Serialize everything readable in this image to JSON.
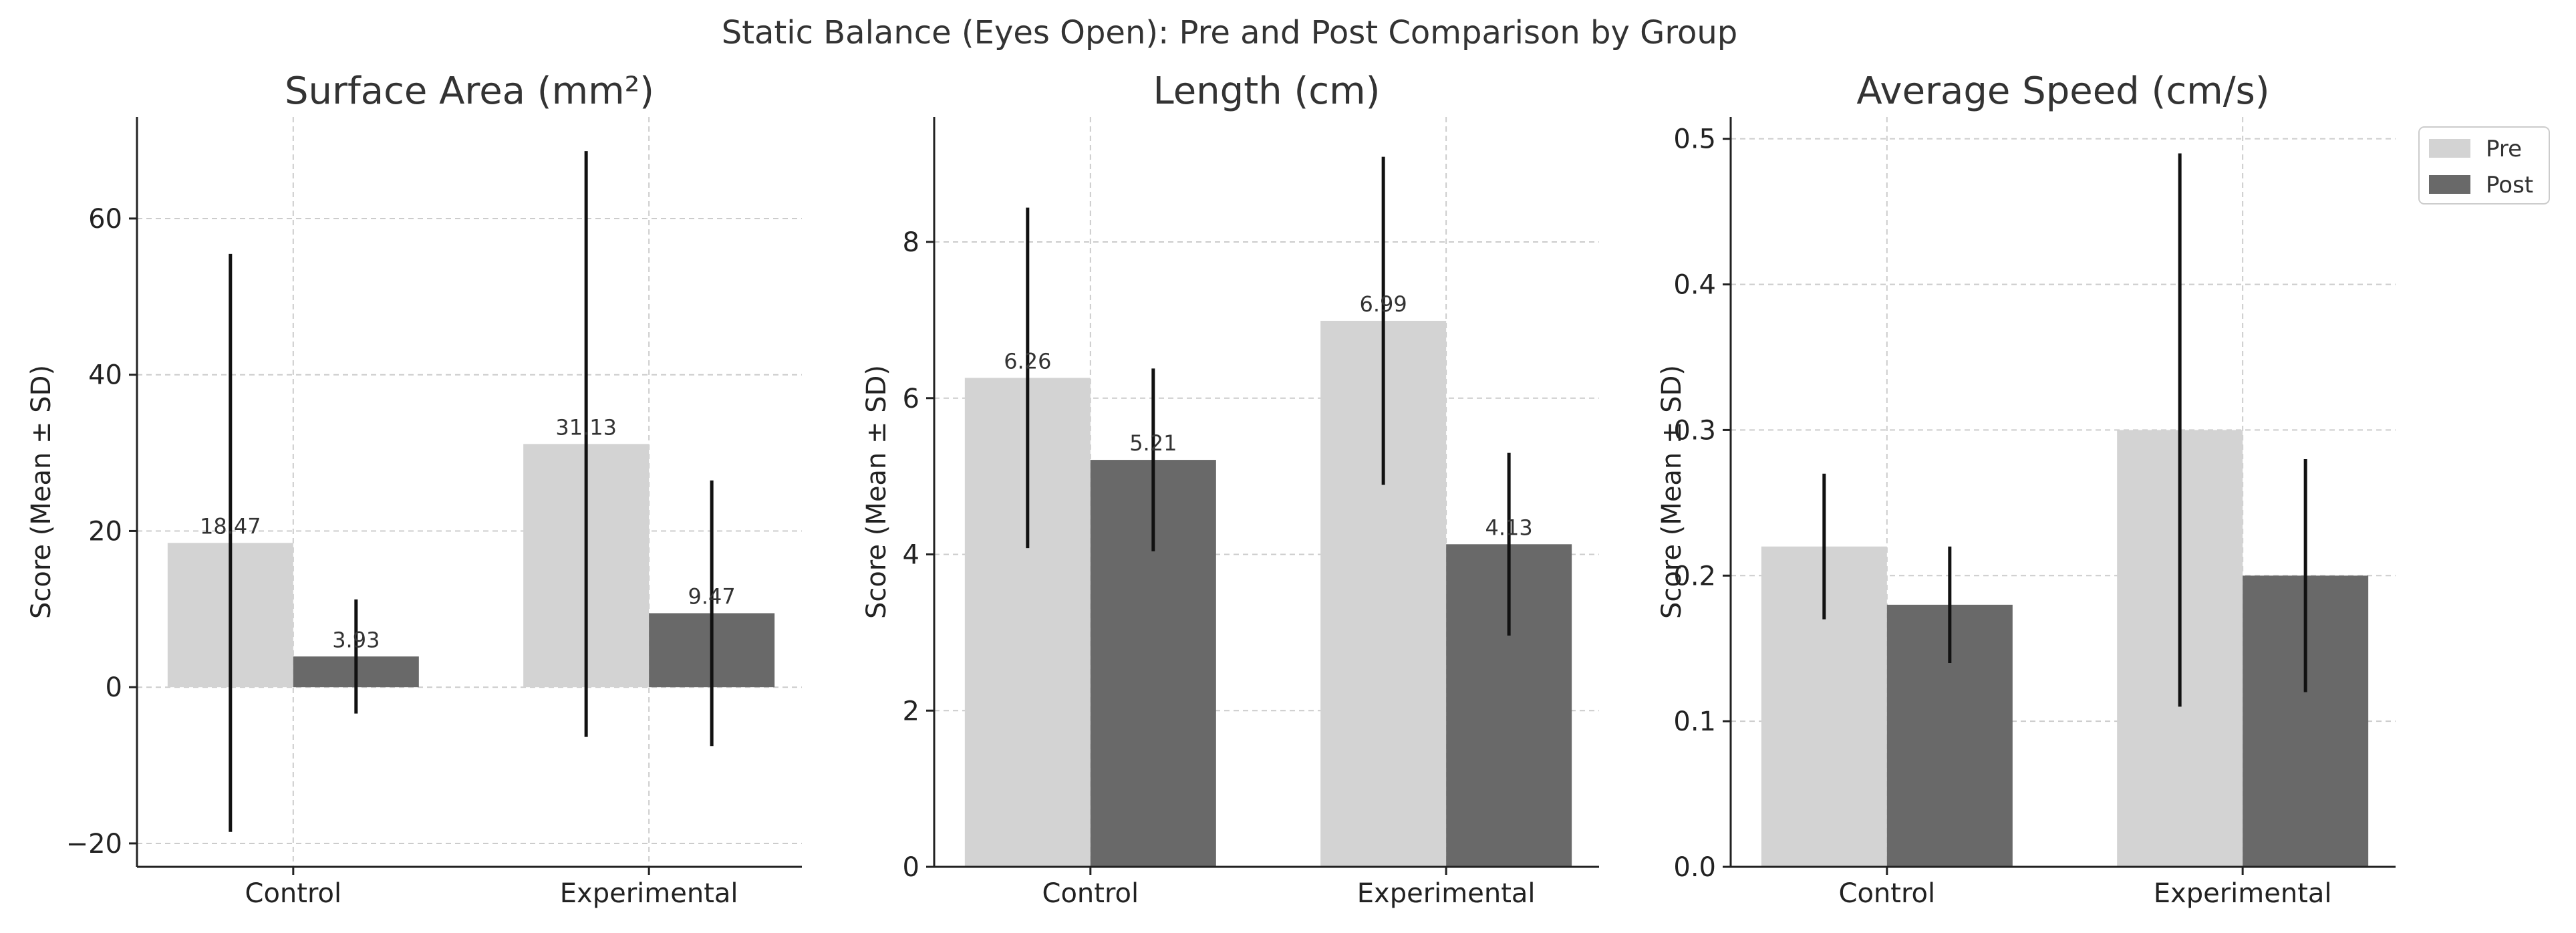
{
  "figure_title": "Static Balance (Eyes Open): Pre and Post Comparison by Group",
  "legend": [
    {
      "label": "Pre",
      "color": "#d3d3d3"
    },
    {
      "label": "Post",
      "color": "#696969"
    }
  ],
  "chart_data": [
    {
      "type": "bar",
      "title": "Surface Area (mm²)",
      "ylabel": "Score (Mean ± SD)",
      "xlabel": "",
      "categories": [
        "Control",
        "Experimental"
      ],
      "ylim": [
        -23,
        73
      ],
      "yticks": [
        -20,
        0,
        20,
        40,
        60
      ],
      "ytick_labels": [
        "−20",
        "0",
        "20",
        "40",
        "60"
      ],
      "grid": true,
      "series": [
        {
          "name": "Pre",
          "values": [
            18.47,
            31.13
          ],
          "sd": [
            37.0,
            37.5
          ],
          "labels": [
            "18.47",
            "31.13"
          ]
        },
        {
          "name": "Post",
          "values": [
            3.93,
            9.47
          ],
          "sd": [
            7.3,
            17.0
          ],
          "labels": [
            "3.93",
            "9.47"
          ]
        }
      ]
    },
    {
      "type": "bar",
      "title": "Length (cm)",
      "ylabel": "Score (Mean ± SD)",
      "xlabel": "",
      "categories": [
        "Control",
        "Experimental"
      ],
      "ylim": [
        0,
        9.6
      ],
      "yticks": [
        0,
        2,
        4,
        6,
        8
      ],
      "ytick_labels": [
        "0",
        "2",
        "4",
        "6",
        "8"
      ],
      "grid": true,
      "series": [
        {
          "name": "Pre",
          "values": [
            6.26,
            6.99
          ],
          "sd": [
            2.18,
            2.1
          ],
          "labels": [
            "6.26",
            "6.99"
          ]
        },
        {
          "name": "Post",
          "values": [
            5.21,
            4.13
          ],
          "sd": [
            1.17,
            1.17
          ],
          "labels": [
            "5.21",
            "4.13"
          ]
        }
      ]
    },
    {
      "type": "bar",
      "title": "Average Speed (cm/s)",
      "ylabel": "Score (Mean ± SD)",
      "xlabel": "",
      "categories": [
        "Control",
        "Experimental"
      ],
      "ylim": [
        0,
        0.515
      ],
      "yticks": [
        0.0,
        0.1,
        0.2,
        0.3,
        0.4,
        0.5
      ],
      "ytick_labels": [
        "0.0",
        "0.1",
        "0.2",
        "0.3",
        "0.4",
        "0.5"
      ],
      "grid": true,
      "series": [
        {
          "name": "Pre",
          "values": [
            0.22,
            0.3
          ],
          "sd": [
            0.05,
            0.19
          ],
          "labels": [
            "",
            ""
          ]
        },
        {
          "name": "Post",
          "values": [
            0.18,
            0.2
          ],
          "sd": [
            0.04,
            0.08
          ],
          "labels": [
            "",
            ""
          ]
        }
      ]
    }
  ]
}
